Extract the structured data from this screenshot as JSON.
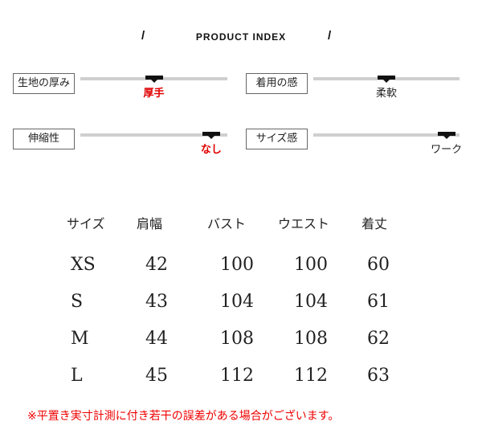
{
  "header": {
    "title": "PRODUCT INDEX",
    "slash": "/"
  },
  "colors": {
    "accent_red": "#e00000",
    "track": "#cfcfcf",
    "marker": "#111111"
  },
  "indices": [
    {
      "label": "生地の厚み",
      "value": "厚手",
      "position": 0.5,
      "value_color": "#e00000"
    },
    {
      "label": "着用の感",
      "value": "柔軟",
      "position": 0.5,
      "value_color": "#222222"
    },
    {
      "label": "伸縮性",
      "value": "なし",
      "position": 0.89,
      "value_color": "#e00000"
    },
    {
      "label": "サイズ感",
      "value": "ワーク",
      "position": 0.91,
      "value_color": "#222222"
    }
  ],
  "size_table": {
    "headers": [
      "サイズ",
      "肩幅",
      "バスト",
      "ウエスト",
      "着丈"
    ],
    "rows": [
      [
        "XS",
        "42",
        "100",
        "100",
        "60"
      ],
      [
        "S",
        "43",
        "104",
        "104",
        "61"
      ],
      [
        "M",
        "44",
        "108",
        "108",
        "62"
      ],
      [
        "L",
        "45",
        "112",
        "112",
        "63"
      ]
    ]
  },
  "note": "※平置き実寸計測に付き若干の誤差がある場合がございます。"
}
